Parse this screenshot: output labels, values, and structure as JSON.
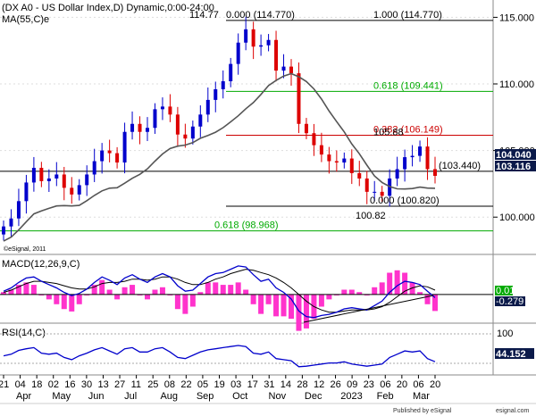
{
  "header": {
    "title": "(DX A0 - US Dollar Index,D) Dynamic,0:00-24:00",
    "ma_label": "MA(55,C)e"
  },
  "watermark": "©eSignal, 2011",
  "footer": {
    "published": "Published by eSignal",
    "brand": "esignal.com"
  },
  "colors": {
    "bull": "#0000cc",
    "bear": "#dd0000",
    "ma": "#555555",
    "fib_green": "#00aa00",
    "fib_red": "#cc0000",
    "macd_hist": "#ff33cc",
    "macd_line": "#0000cc",
    "macd_signal": "#000000",
    "rsi": "#0000cc",
    "label_box": "#0b1a4a"
  },
  "chart_data": [
    {
      "type": "candlestick",
      "name": "US Dollar Index",
      "ylim": [
        97.2,
        116.3
      ],
      "yticks": [
        "115.000",
        "110.000",
        "105.000",
        "100.000"
      ],
      "ma_period": 55,
      "levels": [
        {
          "value": 114.77,
          "label": "1.000 (114.770)",
          "color": "black"
        },
        {
          "value": 109.441,
          "label": "0.618 (109.441)",
          "color": "green"
        },
        {
          "value": 106.149,
          "label": "0.382 (106.149)",
          "color": "red"
        },
        {
          "value": 103.44,
          "label": "(103.440)",
          "color": "black"
        },
        {
          "value": 100.82,
          "label": "0.000 (100.820)",
          "color": "black"
        },
        {
          "value": 98.968,
          "label": "0.618 (98.968)",
          "color": "green"
        }
      ],
      "annotations": [
        {
          "text": "114.77",
          "value": 114.77
        },
        {
          "text": "0.000 (114.770)",
          "value": 114.77
        },
        {
          "text": "105.88",
          "value": 105.88
        },
        {
          "text": "100.82",
          "value": 100.82
        }
      ],
      "last_price_labels": [
        "104.040",
        "103.116"
      ],
      "weekly_closes": [
        99.3,
        99.9,
        101.2,
        102.6,
        103.7,
        102.7,
        102.9,
        103.2,
        102.2,
        101.7,
        102.4,
        103.2,
        104.2,
        105.0,
        104.8,
        104.1,
        106.4,
        107.0,
        106.4,
        106.7,
        108.1,
        108.3,
        107.7,
        106.2,
        105.9,
        106.8,
        107.7,
        108.8,
        109.6,
        110.2,
        111.5,
        113.1,
        114.1,
        112.8,
        112.9,
        113.3,
        111.0,
        111.3,
        110.8,
        107.0,
        106.3,
        105.4,
        104.7,
        104.2,
        104.1,
        104.4,
        103.3,
        102.9,
        101.9,
        101.9,
        101.6,
        102.9,
        103.6,
        104.5,
        104.6,
        105.3,
        103.6,
        103.1
      ]
    },
    {
      "type": "line",
      "name": "MACD(12,26,9,C)",
      "ylim": [
        -2.6,
        3.4
      ],
      "yticks": [
        "0.01",
        "-0.279"
      ],
      "macd": [
        0.3,
        0.6,
        1.1,
        1.5,
        1.6,
        1.2,
        0.9,
        0.6,
        0.2,
        -0.1,
        0.1,
        0.5,
        1.1,
        1.6,
        1.3,
        0.9,
        1.5,
        1.8,
        1.4,
        1.1,
        1.6,
        1.9,
        1.6,
        0.8,
        0.3,
        0.4,
        1.0,
        1.6,
        1.9,
        2.0,
        2.3,
        2.6,
        2.5,
        1.8,
        1.2,
        1.4,
        0.6,
        0.2,
        -0.4,
        -1.5,
        -2.0,
        -2.1,
        -1.9,
        -1.8,
        -1.6,
        -1.3,
        -1.2,
        -1.3,
        -1.4,
        -1.0,
        -0.6,
        0.2,
        0.8,
        1.2,
        1.1,
        0.9,
        0.3,
        -0.28
      ],
      "signal": [
        0.2,
        0.4,
        0.7,
        1.0,
        1.2,
        1.2,
        1.1,
        1.0,
        0.8,
        0.6,
        0.5,
        0.5,
        0.7,
        1.0,
        1.1,
        1.1,
        1.2,
        1.4,
        1.4,
        1.3,
        1.4,
        1.6,
        1.6,
        1.4,
        1.1,
        0.9,
        0.9,
        1.1,
        1.4,
        1.6,
        1.9,
        2.1,
        2.3,
        2.2,
        2.0,
        1.8,
        1.5,
        1.1,
        0.6,
        0.0,
        -0.6,
        -1.1,
        -1.4,
        -1.6,
        -1.6,
        -1.5,
        -1.4,
        -1.4,
        -1.4,
        -1.3,
        -1.1,
        -0.7,
        -0.2,
        0.3,
        0.6,
        0.8,
        0.7,
        0.4
      ]
    },
    {
      "type": "line",
      "name": "RSI(14,C)",
      "ylim": [
        20,
        110
      ],
      "yticks": [
        "100",
        "44.152"
      ],
      "values": [
        55,
        58,
        65,
        68,
        70,
        60,
        58,
        60,
        52,
        48,
        55,
        60,
        66,
        70,
        64,
        58,
        68,
        70,
        62,
        62,
        68,
        70,
        62,
        52,
        50,
        56,
        62,
        66,
        68,
        70,
        72,
        74,
        72,
        60,
        58,
        62,
        50,
        48,
        46,
        35,
        36,
        38,
        40,
        42,
        42,
        44,
        40,
        38,
        36,
        38,
        40,
        52,
        58,
        64,
        62,
        64,
        50,
        44.152
      ]
    }
  ],
  "x_axis": {
    "day_labels": [
      "21",
      "04",
      "18",
      "02",
      "16",
      "30",
      "13",
      "27",
      "11",
      "25",
      "08",
      "22",
      "05",
      "19",
      "03",
      "17",
      "31",
      "14",
      "28",
      "12",
      "26",
      "09",
      "23",
      "06",
      "20",
      "06",
      "20"
    ],
    "month_labels": [
      "Apr",
      "May",
      "Jun",
      "Jul",
      "Aug",
      "Sep",
      "Oct",
      "Nov",
      "Dec",
      "2023",
      "Feb",
      "Mar"
    ]
  }
}
